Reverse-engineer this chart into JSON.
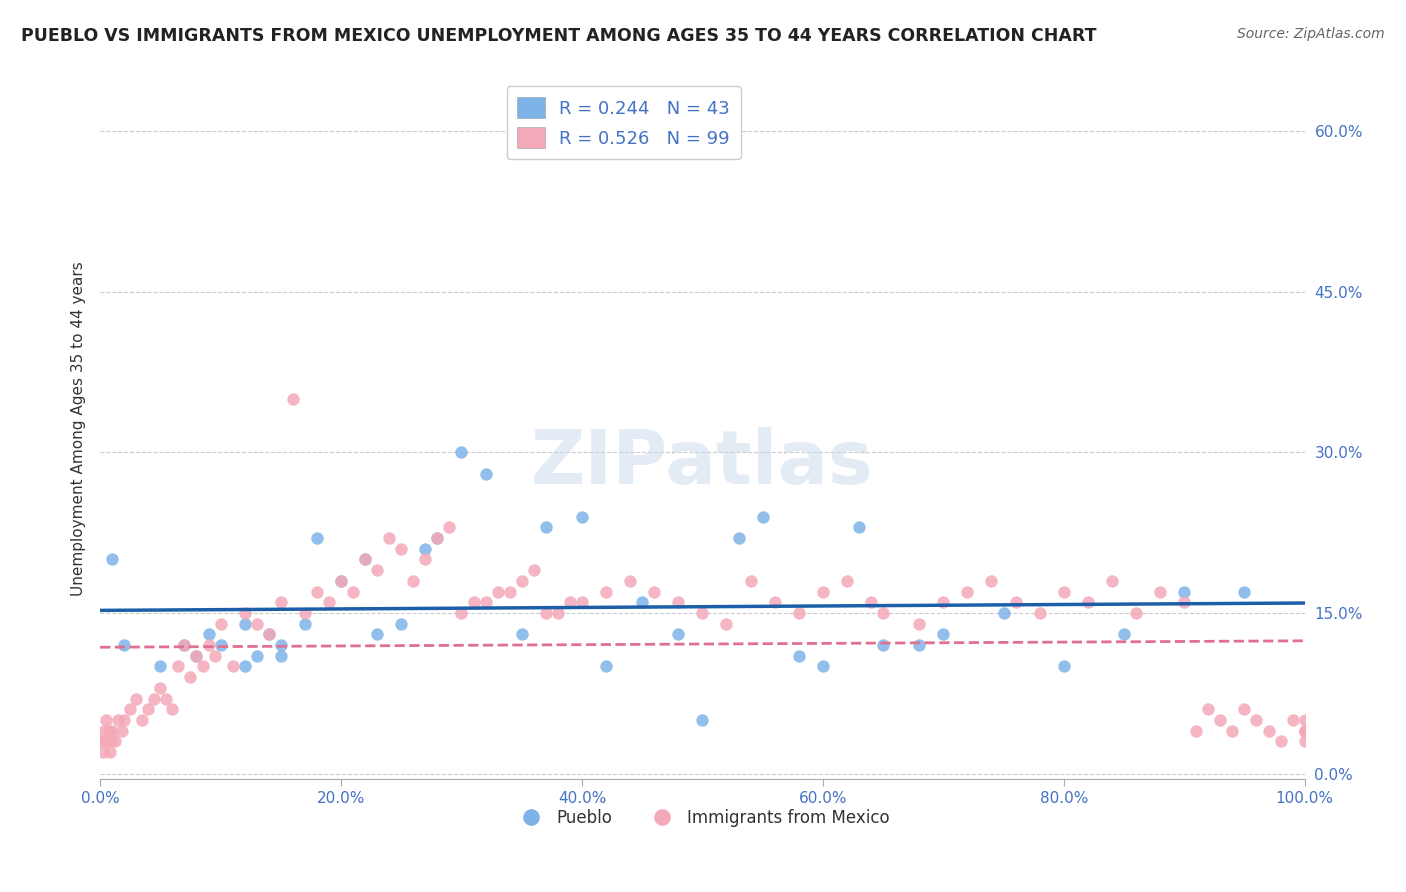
{
  "title": "PUEBLO VS IMMIGRANTS FROM MEXICO UNEMPLOYMENT AMONG AGES 35 TO 44 YEARS CORRELATION CHART",
  "source": "Source: ZipAtlas.com",
  "ylabel": "Unemployment Among Ages 35 to 44 years",
  "ylabel_ticks": [
    "0.0%",
    "15.0%",
    "30.0%",
    "45.0%",
    "60.0%"
  ],
  "ylabel_tick_vals": [
    0.0,
    0.15,
    0.3,
    0.45,
    0.6
  ],
  "legend_label1": "R = 0.244   N = 43",
  "legend_label2": "R = 0.526   N = 99",
  "bottom_legend1": "Pueblo",
  "bottom_legend2": "Immigrants from Mexico",
  "pueblo_color": "#7eb3e8",
  "immigrants_color": "#f4a8b8",
  "pueblo_line_color": "#1c5fa8",
  "immigrants_line_color": "#e07090",
  "watermark": "ZIPatlas",
  "pueblo_scatter_x": [
    0.01,
    0.02,
    0.05,
    0.07,
    0.08,
    0.09,
    0.1,
    0.12,
    0.12,
    0.13,
    0.14,
    0.15,
    0.15,
    0.17,
    0.18,
    0.2,
    0.22,
    0.23,
    0.25,
    0.27,
    0.28,
    0.3,
    0.32,
    0.35,
    0.37,
    0.4,
    0.42,
    0.45,
    0.48,
    0.5,
    0.53,
    0.55,
    0.58,
    0.6,
    0.63,
    0.65,
    0.68,
    0.7,
    0.75,
    0.8,
    0.85,
    0.9,
    0.95
  ],
  "pueblo_scatter_y": [
    0.2,
    0.12,
    0.1,
    0.12,
    0.11,
    0.13,
    0.12,
    0.1,
    0.14,
    0.11,
    0.13,
    0.12,
    0.11,
    0.14,
    0.22,
    0.18,
    0.2,
    0.13,
    0.14,
    0.21,
    0.22,
    0.3,
    0.28,
    0.13,
    0.23,
    0.24,
    0.1,
    0.16,
    0.13,
    0.05,
    0.22,
    0.24,
    0.11,
    0.1,
    0.23,
    0.12,
    0.12,
    0.13,
    0.15,
    0.1,
    0.13,
    0.17,
    0.17
  ],
  "immigrants_scatter_x": [
    0.001,
    0.002,
    0.003,
    0.004,
    0.005,
    0.006,
    0.007,
    0.008,
    0.009,
    0.01,
    0.012,
    0.015,
    0.018,
    0.02,
    0.025,
    0.03,
    0.035,
    0.04,
    0.045,
    0.05,
    0.055,
    0.06,
    0.065,
    0.07,
    0.075,
    0.08,
    0.085,
    0.09,
    0.095,
    0.1,
    0.11,
    0.12,
    0.13,
    0.14,
    0.15,
    0.16,
    0.17,
    0.18,
    0.19,
    0.2,
    0.21,
    0.22,
    0.23,
    0.24,
    0.25,
    0.26,
    0.27,
    0.28,
    0.29,
    0.3,
    0.31,
    0.32,
    0.33,
    0.34,
    0.35,
    0.36,
    0.37,
    0.38,
    0.39,
    0.4,
    0.42,
    0.44,
    0.46,
    0.48,
    0.5,
    0.52,
    0.54,
    0.56,
    0.58,
    0.6,
    0.62,
    0.64,
    0.65,
    0.68,
    0.7,
    0.72,
    0.74,
    0.76,
    0.78,
    0.8,
    0.82,
    0.84,
    0.86,
    0.88,
    0.9,
    0.91,
    0.92,
    0.93,
    0.94,
    0.95,
    0.96,
    0.97,
    0.98,
    0.99,
    1.0,
    1.0,
    1.0,
    1.0,
    1.0
  ],
  "immigrants_scatter_y": [
    0.03,
    0.02,
    0.04,
    0.03,
    0.05,
    0.03,
    0.04,
    0.02,
    0.03,
    0.04,
    0.03,
    0.05,
    0.04,
    0.05,
    0.06,
    0.07,
    0.05,
    0.06,
    0.07,
    0.08,
    0.07,
    0.06,
    0.1,
    0.12,
    0.09,
    0.11,
    0.1,
    0.12,
    0.11,
    0.14,
    0.1,
    0.15,
    0.14,
    0.13,
    0.16,
    0.35,
    0.15,
    0.17,
    0.16,
    0.18,
    0.17,
    0.2,
    0.19,
    0.22,
    0.21,
    0.18,
    0.2,
    0.22,
    0.23,
    0.15,
    0.16,
    0.16,
    0.17,
    0.17,
    0.18,
    0.19,
    0.15,
    0.15,
    0.16,
    0.16,
    0.17,
    0.18,
    0.17,
    0.16,
    0.15,
    0.14,
    0.18,
    0.16,
    0.15,
    0.17,
    0.18,
    0.16,
    0.15,
    0.14,
    0.16,
    0.17,
    0.18,
    0.16,
    0.15,
    0.17,
    0.16,
    0.18,
    0.15,
    0.17,
    0.16,
    0.04,
    0.06,
    0.05,
    0.04,
    0.06,
    0.05,
    0.04,
    0.03,
    0.05,
    0.04,
    0.03,
    0.04,
    0.05,
    0.04
  ]
}
